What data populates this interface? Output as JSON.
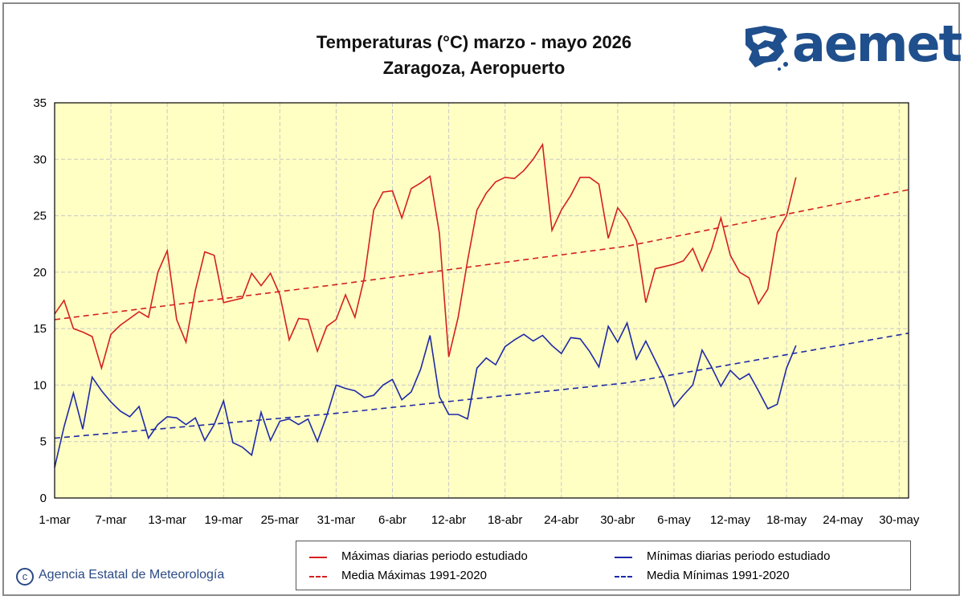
{
  "title": "Temperaturas (°C) marzo - mayo 2026",
  "subtitle": "Zaragoza, Aeropuerto",
  "logo_text": "aemet",
  "credit": "Agencia Estatal de Meteorología",
  "colors": {
    "plot_bg": "#ffffc4",
    "max": "#d42020",
    "min": "#1e2aa6",
    "grid": "#c8c8c8"
  },
  "chart_data": {
    "type": "line",
    "title": "Temperaturas (°C) marzo - mayo 2026",
    "subtitle": "Zaragoza, Aeropuerto",
    "ylim": [
      0,
      35
    ],
    "yticks": [
      0,
      5,
      10,
      15,
      20,
      25,
      30,
      35
    ],
    "x_dates_start": "2026-03-01",
    "x_dates_end": "2026-05-31",
    "xtick_labels": [
      "1-mar",
      "7-mar",
      "13-mar",
      "19-mar",
      "25-mar",
      "31-mar",
      "6-abr",
      "12-abr",
      "18-abr",
      "24-abr",
      "30-abr",
      "6-may",
      "12-may",
      "18-may",
      "24-may",
      "30-may"
    ],
    "grid": true,
    "legend_position": "bottom",
    "series": [
      {
        "name": "Máximas diarias periodo estudiado",
        "style": "solid",
        "color": "#d42020",
        "values": [
          16.3,
          17.5,
          15.0,
          14.7,
          14.3,
          11.5,
          14.5,
          15.3,
          15.9,
          16.5,
          16.0,
          20.0,
          21.9,
          15.8,
          13.8,
          18.4,
          21.8,
          21.5,
          17.3,
          17.5,
          17.7,
          19.9,
          18.8,
          19.9,
          18.0,
          14.0,
          15.9,
          15.8,
          13.0,
          15.2,
          15.8,
          18.0,
          16.0,
          19.5,
          25.5,
          27.1,
          27.2,
          24.8,
          27.4,
          27.9,
          28.5,
          23.5,
          12.5,
          16.0,
          21.0,
          25.5,
          27.0,
          28.0,
          28.4,
          28.3,
          29.0,
          30.0,
          31.3,
          23.7,
          25.5,
          26.8,
          28.4,
          28.4,
          27.8,
          23.0,
          25.7,
          24.6,
          22.8,
          17.3,
          20.3,
          20.5,
          20.7,
          21.0,
          22.1,
          20.1,
          22.0,
          24.8,
          21.5,
          20.0,
          19.5,
          17.2,
          18.5,
          23.5,
          25.0,
          28.4
        ]
      },
      {
        "name": "Mínimas diarias periodo estudiado",
        "style": "solid",
        "color": "#1e2aa6",
        "values": [
          2.7,
          6.3,
          9.3,
          6.1,
          10.7,
          9.5,
          8.5,
          7.7,
          7.2,
          8.1,
          5.3,
          6.5,
          7.2,
          7.1,
          6.5,
          7.1,
          5.1,
          6.5,
          8.6,
          4.9,
          4.5,
          3.8,
          7.6,
          5.1,
          6.8,
          7.0,
          6.5,
          7.0,
          5.0,
          7.3,
          10.0,
          9.7,
          9.5,
          8.9,
          9.1,
          10.0,
          10.5,
          8.7,
          9.4,
          11.4,
          14.4,
          9.0,
          7.4,
          7.4,
          7.0,
          11.5,
          12.4,
          11.8,
          13.4,
          14.0,
          14.5,
          13.9,
          14.4,
          13.5,
          12.8,
          14.2,
          14.1,
          13.0,
          11.6,
          15.2,
          13.8,
          15.5,
          12.3,
          13.9,
          12.2,
          10.5,
          8.1,
          9.1,
          10.0,
          13.1,
          11.6,
          9.9,
          11.3,
          10.5,
          11.0,
          9.5,
          7.9,
          8.3,
          11.5,
          13.5
        ]
      },
      {
        "name": "Media Máximas 1991-2020",
        "style": "dashed",
        "color": "#d42020",
        "points": [
          [
            1,
            15.8
          ],
          [
            31,
            18.9
          ],
          [
            62,
            22.3
          ],
          [
            92,
            27.3
          ]
        ]
      },
      {
        "name": "Media Mínimas 1991-2020",
        "style": "dashed",
        "color": "#1e2aa6",
        "points": [
          [
            1,
            5.3
          ],
          [
            31,
            7.5
          ],
          [
            62,
            10.2
          ],
          [
            92,
            14.6
          ]
        ]
      }
    ]
  }
}
